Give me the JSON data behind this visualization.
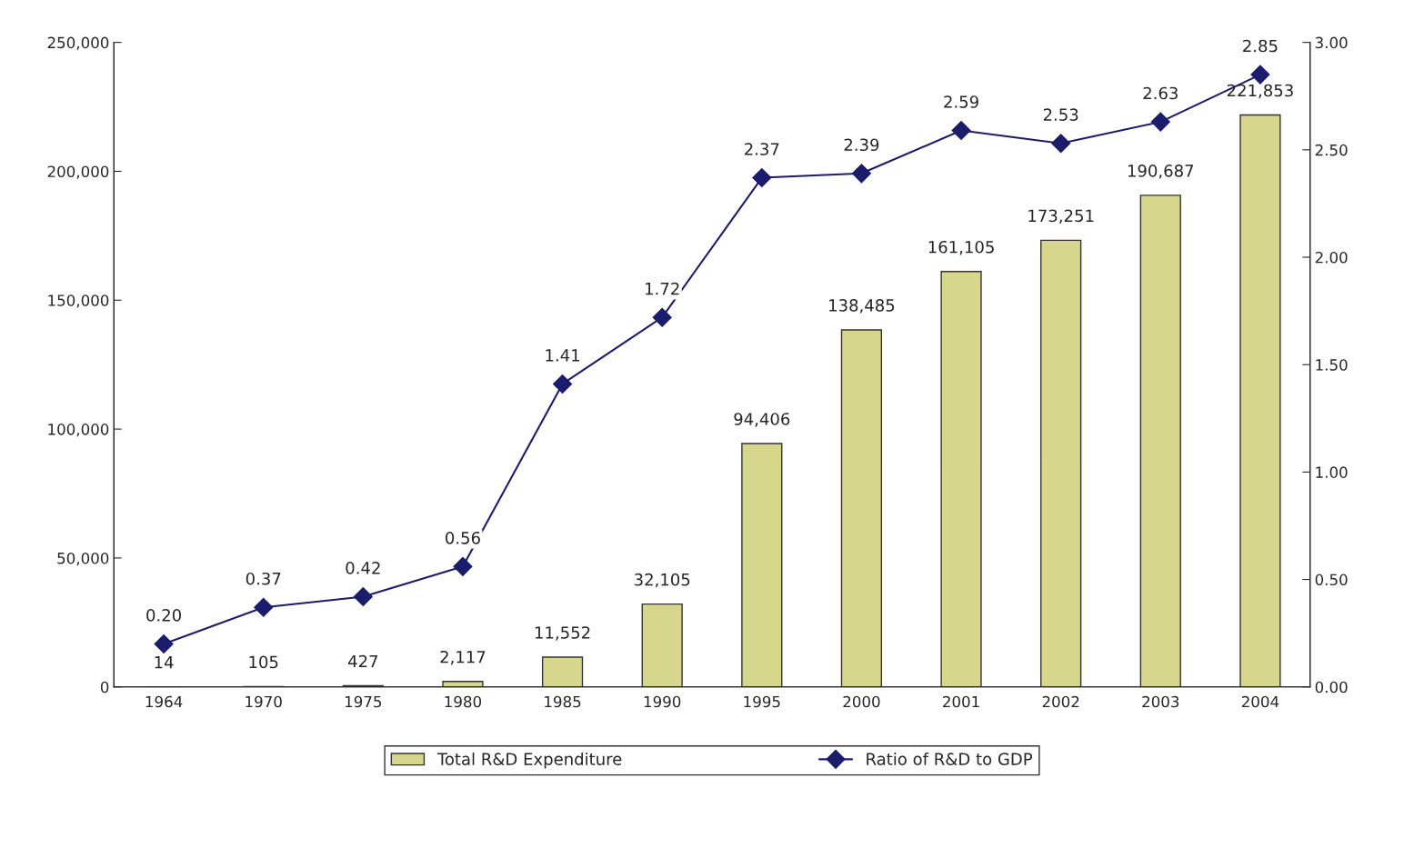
{
  "chart_data": {
    "type": "bar",
    "categories": [
      "1964",
      "1970",
      "1975",
      "1980",
      "1985",
      "1990",
      "1995",
      "2000",
      "2001",
      "2002",
      "2003",
      "2004"
    ],
    "series": [
      {
        "name": "Total R&D Expenditure",
        "color": "#d6d68c",
        "values": [
          14,
          105,
          427,
          2117,
          11552,
          32105,
          94406,
          138485,
          161105,
          173251,
          190687,
          221853
        ],
        "value_labels": [
          "14",
          "105",
          "427",
          "2,117",
          "11,552",
          "32,105",
          "94,406",
          "138,485",
          "161,105",
          "173,251",
          "190,687",
          "221,853"
        ]
      },
      {
        "name": "Ratio of R&D to GDP",
        "type": "line",
        "axis": "y2",
        "color": "#1c1c6c",
        "marker": "diamond",
        "line_style": "solid",
        "values": [
          0.2,
          0.37,
          0.42,
          0.56,
          1.41,
          1.72,
          2.37,
          2.39,
          2.59,
          2.53,
          2.63,
          2.85
        ],
        "value_labels": [
          "0.20",
          "0.37",
          "0.42",
          "0.56",
          "1.41",
          "1.72",
          "2.37",
          "2.39",
          "2.59",
          "2.53",
          "2.63",
          "2.85"
        ]
      }
    ],
    "ylim": [
      0,
      250000
    ],
    "yticks": [
      0,
      {
        "value": 50000,
        "label": "50,000"
      },
      {
        "value": 100000,
        "label": "100,000"
      },
      {
        "value": 150000,
        "label": "150,000"
      },
      {
        "value": 200000,
        "label": "200,000"
      },
      {
        "value": 250000,
        "label": "250,000"
      }
    ],
    "y2lim": [
      0,
      3
    ],
    "y2ticks": [
      {
        "value": 0,
        "label": "0.00"
      },
      {
        "value": 0.5,
        "label": "0.50"
      },
      {
        "value": 1,
        "label": "1.00"
      },
      {
        "value": 1.5,
        "label": "1.50"
      },
      {
        "value": 2,
        "label": "2.00"
      },
      {
        "value": 2.5,
        "label": "2.50"
      },
      {
        "value": 3,
        "label": "3.00"
      }
    ],
    "grid": false,
    "legend": "bottom"
  }
}
